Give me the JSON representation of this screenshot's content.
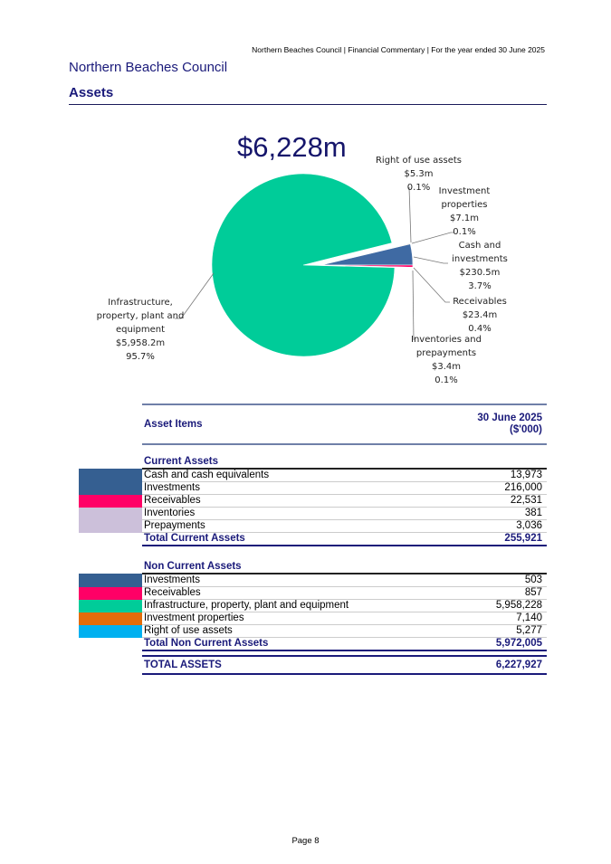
{
  "header": {
    "running_title": "Northern Beaches Council | Financial Commentary | For the year ended 30 June 2025",
    "org": "Northern Beaches Council",
    "section": "Assets"
  },
  "chart_data": {
    "type": "pie",
    "title": "$6,228m",
    "slices": [
      {
        "name": "Right of use assets",
        "value": 5.3,
        "value_label": "$5.3m",
        "pct_label": "0.1%",
        "color": "#00b0f0",
        "exploded": true
      },
      {
        "name": "Investment properties",
        "value": 7.1,
        "value_label": "$7.1m",
        "pct_label": "0.1%",
        "color": "#e36c0a",
        "exploded": true
      },
      {
        "name": "Cash and investments",
        "value": 230.5,
        "value_label": "$230.5m",
        "pct_label": "3.7%",
        "color": "#3f6aa3",
        "exploded": true
      },
      {
        "name": "Receivables",
        "value": 23.4,
        "value_label": "$23.4m",
        "pct_label": "0.4%",
        "color": "#ff0066",
        "exploded": true
      },
      {
        "name": "Inventories and prepayments",
        "value": 3.4,
        "value_label": "$3.4m",
        "pct_label": "0.1%",
        "color": "#ccc0da",
        "exploded": true
      },
      {
        "name": "Infrastructure, property, plant and equipment",
        "value": 5958.2,
        "value_label": "$5,958.2m",
        "pct_label": "95.7%",
        "color": "#00cc99",
        "exploded": false
      }
    ]
  },
  "table": {
    "col_item": "Asset Items",
    "col_value_1": "30 June 2025",
    "col_value_2": "($'000)",
    "current": {
      "heading": "Current Assets",
      "rows": [
        {
          "label": "Cash and cash equivalents",
          "value": "13,973",
          "color": "#355f91"
        },
        {
          "label": "Investments",
          "value": "216,000",
          "color": "#355f91"
        },
        {
          "label": "Receivables",
          "value": "22,531",
          "color": "#ff0066"
        },
        {
          "label": "Inventories",
          "value": "381",
          "color": "#ccc0da"
        },
        {
          "label": "Prepayments",
          "value": "3,036",
          "color": "#ccc0da"
        }
      ],
      "total_label": "Total Current Assets",
      "total": "255,921"
    },
    "noncurrent": {
      "heading": "Non Current Assets",
      "rows": [
        {
          "label": "Investments",
          "value": "503",
          "color": "#355f91"
        },
        {
          "label": "Receivables",
          "value": "857",
          "color": "#ff0066"
        },
        {
          "label": "Infrastructure, property, plant and equipment",
          "value": "5,958,228",
          "color": "#00cc99"
        },
        {
          "label": "Investment properties",
          "value": "7,140",
          "color": "#e36c0a"
        },
        {
          "label": "Right of use assets",
          "value": "5,277",
          "color": "#00b0f0"
        }
      ],
      "total_label": "Total Non Current Assets",
      "total": "5,972,005"
    },
    "grand_label": "TOTAL ASSETS",
    "grand_total": "6,227,927"
  },
  "footer": {
    "page": "Page 8"
  }
}
